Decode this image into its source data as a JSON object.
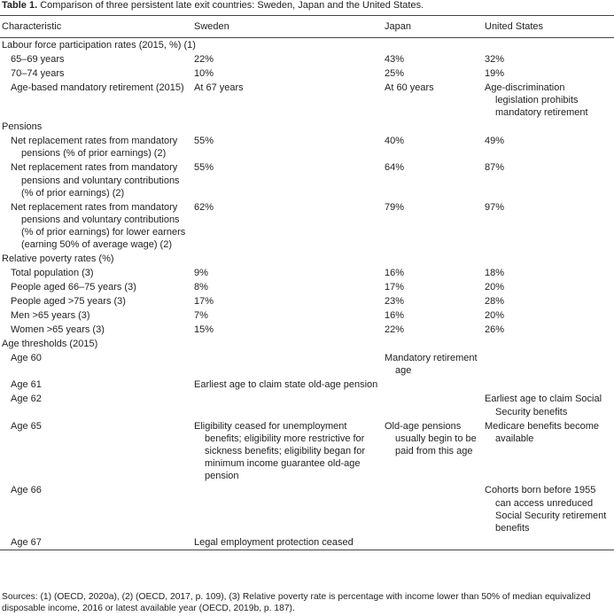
{
  "table": {
    "title": {
      "label": "Table 1.",
      "text": "Comparison of three persistent late exit countries: Sweden, Japan and the United States."
    },
    "header": [
      "Characteristic",
      "Sweden",
      "Japan",
      "United States"
    ],
    "rows": [
      {
        "section": true,
        "cells": [
          "Labour force participation rates (2015, %) (1)"
        ]
      },
      {
        "cells": [
          "65–69 years",
          "22%",
          "43%",
          "32%"
        ]
      },
      {
        "cells": [
          "70–74 years",
          "10%",
          "25%",
          "19%"
        ]
      },
      {
        "cells": [
          "Age-based mandatory retirement (2015)",
          "At 67 years",
          "At 60 years",
          "Age-discrimination legislation prohibits mandatory retirement"
        ]
      },
      {
        "section": true,
        "cells": [
          "Pensions"
        ]
      },
      {
        "cells": [
          "Net replacement rates from mandatory pensions (% of prior earnings) (2)",
          "55%",
          "40%",
          "49%"
        ]
      },
      {
        "cells": [
          "Net replacement rates from mandatory pensions and voluntary contributions (% of prior earnings) (2)",
          "55%",
          "64%",
          "87%"
        ]
      },
      {
        "cells": [
          "Net replacement rates from mandatory pensions and voluntary contributions (% of prior earnings) for lower earners (earning 50% of average wage) (2)",
          "62%",
          "79%",
          "97%"
        ]
      },
      {
        "section": true,
        "cells": [
          "Relative poverty rates (%)"
        ]
      },
      {
        "cells": [
          "Total population (3)",
          "9%",
          "16%",
          "18%"
        ]
      },
      {
        "cells": [
          "People aged 66–75 years (3)",
          "8%",
          "17%",
          "20%"
        ]
      },
      {
        "cells": [
          "People aged >75 years (3)",
          "17%",
          "23%",
          "28%"
        ]
      },
      {
        "cells": [
          "Men >65 years (3)",
          "7%",
          "16%",
          "20%"
        ]
      },
      {
        "cells": [
          "Women >65 years (3)",
          "15%",
          "22%",
          "26%"
        ]
      },
      {
        "section": true,
        "cells": [
          "Age thresholds (2015)"
        ]
      },
      {
        "cells": [
          "Age 60",
          null,
          "Mandatory retirement age",
          null
        ]
      },
      {
        "cells": [
          "Age 61",
          "Earliest age to claim state old-age pension",
          null,
          null
        ]
      },
      {
        "cells": [
          "Age 62",
          null,
          null,
          "Earliest age to claim Social Security benefits"
        ]
      },
      {
        "cells": [
          "Age 65",
          "Eligibility ceased for unemployment benefits; eligibility more restrictive for sickness benefits; eligibility began for minimum income guarantee old-age pension",
          "Old-age pensions usually begin to be paid from this age",
          "Medicare benefits become available"
        ]
      },
      {
        "cells": [
          "Age 66",
          null,
          null,
          "Cohorts born before 1955 can access unreduced Social Security retirement benefits"
        ]
      },
      {
        "cells": [
          "Age 67",
          "Legal employment protection ceased",
          null,
          null
        ]
      }
    ],
    "footnote": "Sources: (1) (OECD, 2020a), (2) (OECD, 2017, p. 109), (3) Relative poverty rate is percentage with income lower than 50% of median equivalized disposable income, 2016 or latest available year (OECD, 2019b, p. 187)."
  }
}
